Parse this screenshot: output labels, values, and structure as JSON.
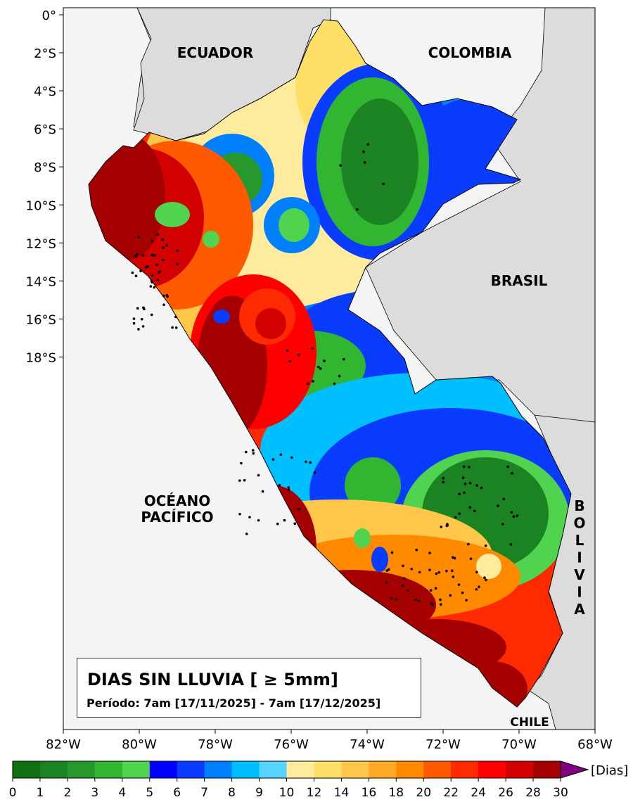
{
  "title": "DIAS SIN LLUVIA [ ≥ 5mm]",
  "subtitle": "Período: 7am [17/11/2025] - 7am [17/12/2025]",
  "map": {
    "extent_lon": [
      -82,
      -68
    ],
    "extent_lat": [
      0,
      -18.8
    ],
    "x_ticks": [
      "82°W",
      "80°W",
      "78°W",
      "76°W",
      "74°W",
      "72°W",
      "70°W",
      "68°W"
    ],
    "y_ticks": [
      "0°",
      "2°S",
      "4°S",
      "6°S",
      "8°S",
      "10°S",
      "12°S",
      "14°S",
      "16°S",
      "18°S"
    ],
    "labels": {
      "ecuador": "ECUADOR",
      "colombia": "COLOMBIA",
      "brasil": "BRASIL",
      "ocean_line1": "OCÉANO",
      "ocean_line2": "PACÍFICO",
      "bolivia": [
        "B",
        "O",
        "L",
        "I",
        "V",
        "I",
        "A"
      ],
      "chile": "CHILE"
    },
    "colors": {
      "ocean": "#f4f4f4",
      "land": "#dcdcdc",
      "stations": "#000000"
    }
  },
  "colorbar": {
    "unit": "[Dias]",
    "ticks": [
      "0",
      "1",
      "2",
      "3",
      "4",
      "5",
      "6",
      "7",
      "8",
      "9",
      "10",
      "12",
      "14",
      "16",
      "18",
      "20",
      "22",
      "24",
      "26",
      "28",
      "30"
    ],
    "colors": [
      "#0f7112",
      "#1b8321",
      "#27982b",
      "#31b631",
      "#50d44f",
      "#0000ff",
      "#0a3cff",
      "#0080ff",
      "#00bfff",
      "#55d4ff",
      "#ffeb9c",
      "#ffe066",
      "#ffc74a",
      "#ffa928",
      "#ff8a00",
      "#ff5a00",
      "#ff2a00",
      "#ff0000",
      "#d20000",
      "#a50000"
    ],
    "extend_color": "#800080"
  }
}
